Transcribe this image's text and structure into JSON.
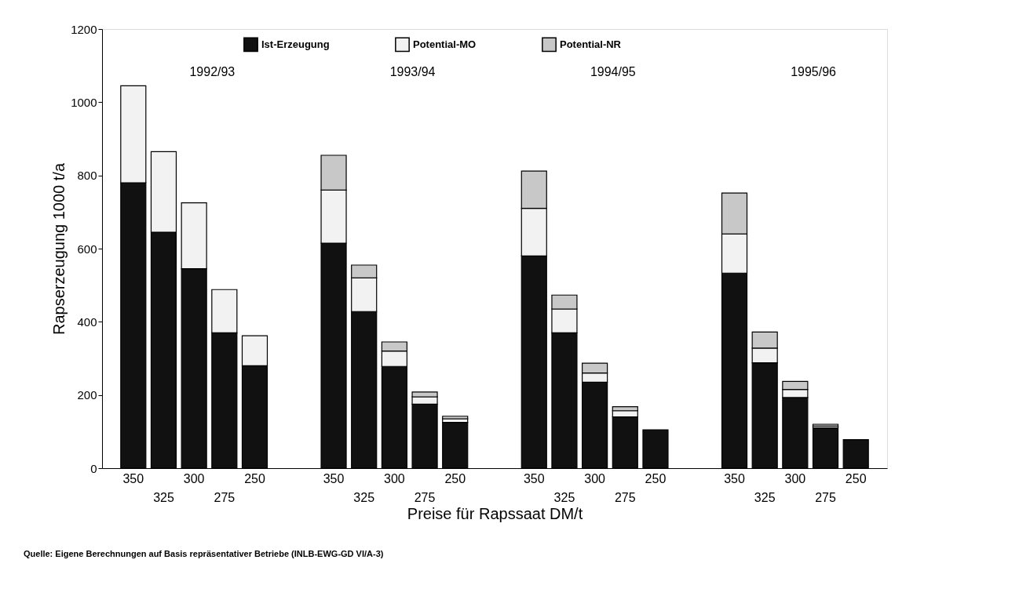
{
  "chart_data": {
    "type": "bar",
    "stacked": true,
    "xlabel": "Preise für Rapssaat DM/t",
    "ylabel": "Rapserzeugung 1000 t/a",
    "categories": [
      "350",
      "325",
      "300",
      "275",
      "250",
      "350",
      "325",
      "300",
      "275",
      "250",
      "350",
      "325",
      "300",
      "275",
      "250",
      "350",
      "325",
      "300",
      "275",
      "250"
    ],
    "series": [
      {
        "name": "Ist-Erzeugung",
        "color": "#111111",
        "values": [
          780,
          645,
          545,
          370,
          280,
          615,
          428,
          278,
          175,
          125,
          580,
          370,
          235,
          140,
          105,
          533,
          288,
          193,
          110,
          78
        ]
      },
      {
        "name": "Potential-MO",
        "color": "#f2f2f2",
        "values": [
          265,
          220,
          180,
          118,
          82,
          145,
          92,
          42,
          20,
          10,
          130,
          65,
          25,
          17,
          0,
          107,
          40,
          22,
          5,
          0
        ]
      },
      {
        "name": "Potential-NR",
        "color": "#c8c8c8",
        "values": [
          0,
          0,
          0,
          0,
          0,
          95,
          35,
          25,
          13,
          7,
          102,
          38,
          27,
          11,
          0,
          112,
          44,
          22,
          5,
          0
        ]
      }
    ],
    "ylim": [
      0,
      1200
    ],
    "yticks": [
      0,
      200,
      400,
      600,
      800,
      1000,
      1200
    ],
    "grid": false,
    "legend": "top",
    "annotations": [
      "1992/93",
      "1993/94",
      "1994/95",
      "1995/96",
      "Quelle: Eigene Berechnungen auf Basis repräsentativer Betriebe (INLB-EWG-GD VI/A-3)"
    ]
  }
}
